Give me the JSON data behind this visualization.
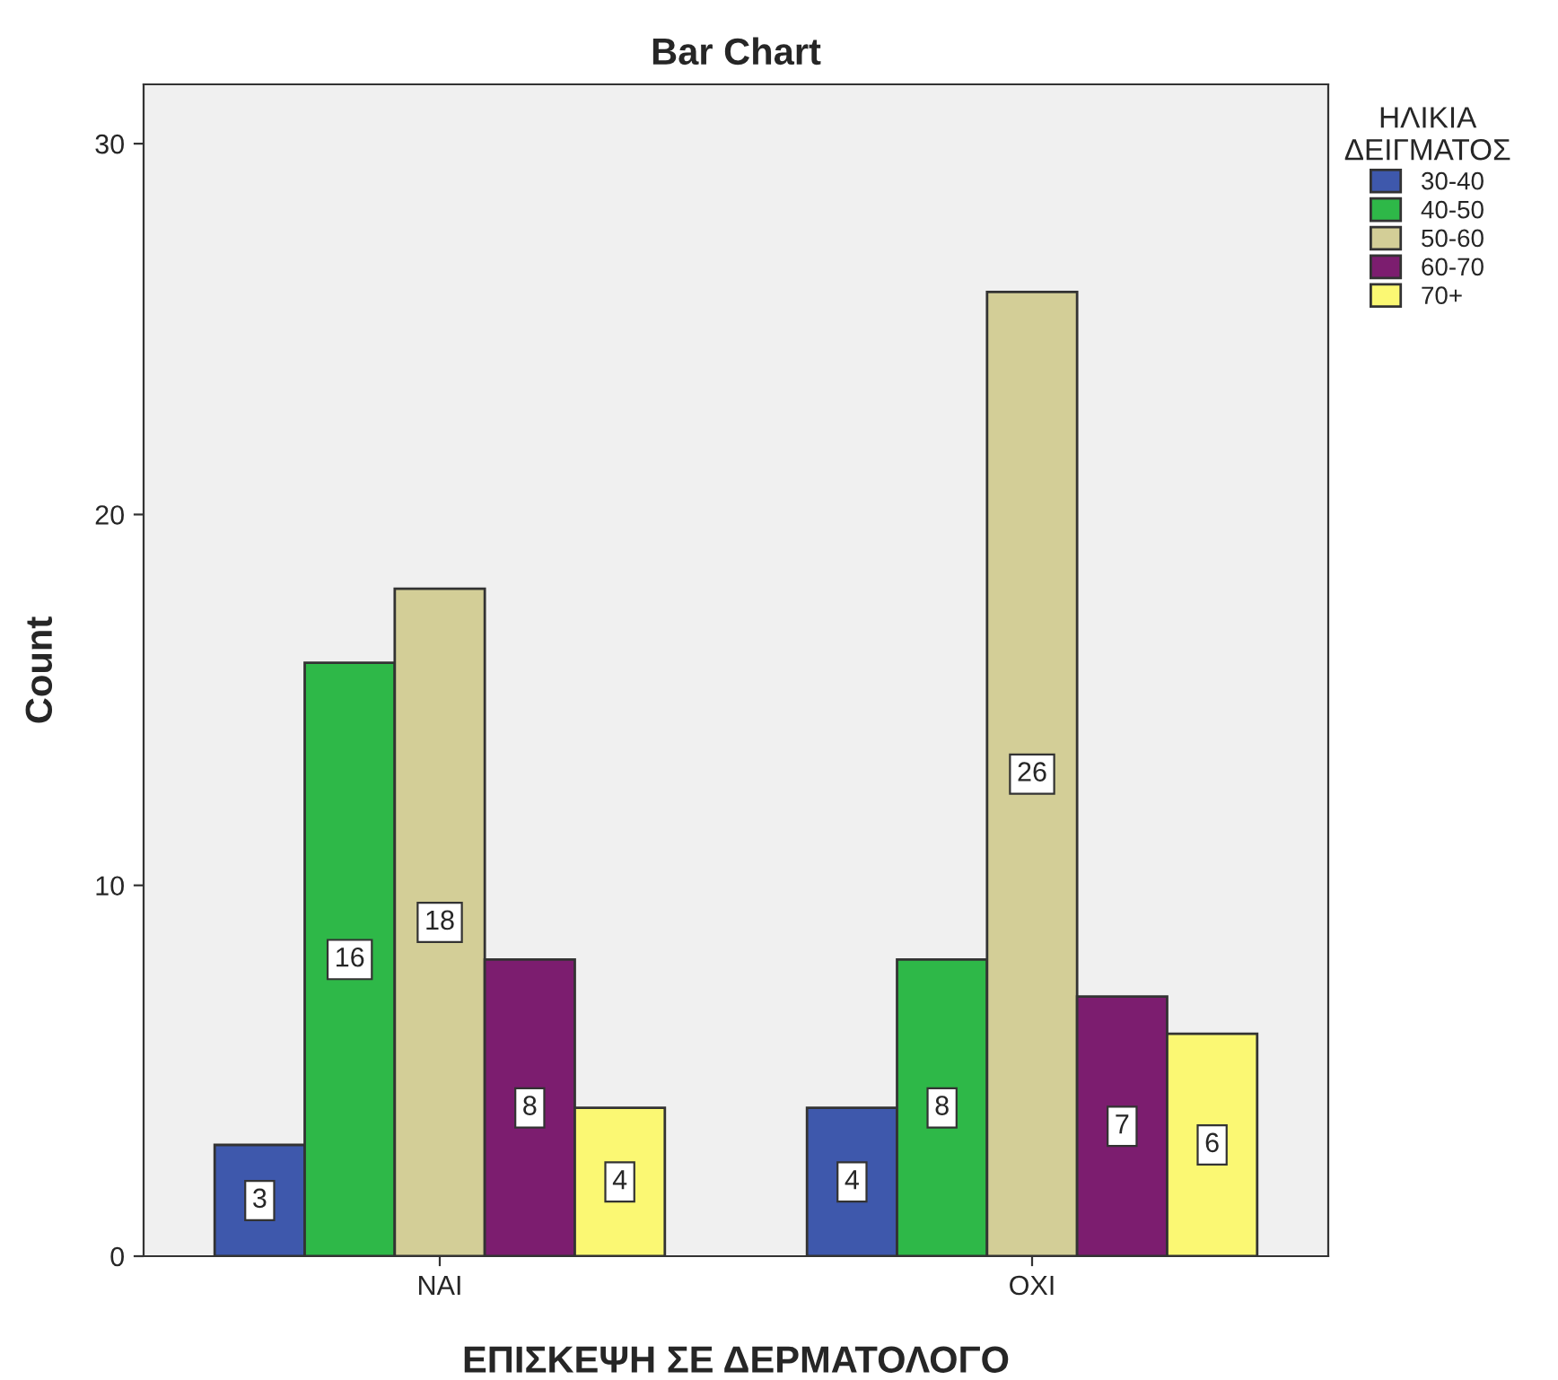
{
  "chart_data": {
    "type": "bar",
    "title": "Bar Chart",
    "xlabel": "ΕΠΙΣΚΕΨΗ ΣΕ ΔΕΡΜΑΤΟΛΟΓΟ",
    "ylabel": "Count",
    "legend_title": "ΗΛΙΚΙΑ\nΔΕΙΓΜΑΤΟΣ",
    "categories": [
      "ΝΑΙ",
      "ΟΧΙ"
    ],
    "series": [
      {
        "name": "30-40",
        "color": "#3e58ac",
        "values": [
          3,
          4
        ]
      },
      {
        "name": "40-50",
        "color": "#2eb848",
        "values": [
          16,
          8
        ]
      },
      {
        "name": "50-60",
        "color": "#d3ce97",
        "values": [
          18,
          26
        ]
      },
      {
        "name": "60-70",
        "color": "#7c1d6f",
        "values": [
          8,
          7
        ]
      },
      {
        "name": "70+",
        "color": "#fbf873",
        "values": [
          4,
          6
        ]
      }
    ],
    "ylim": [
      0,
      31.6
    ],
    "yticks": [
      0,
      10,
      20,
      30
    ],
    "grid": false,
    "legend": "top right",
    "data_labels": true
  }
}
